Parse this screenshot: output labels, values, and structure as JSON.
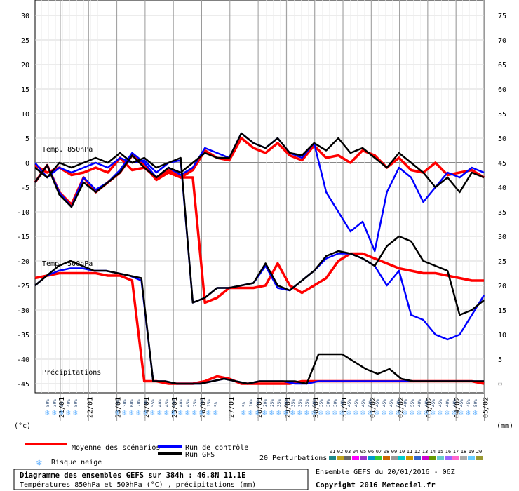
{
  "chart_data": {
    "type": "line",
    "title": "Diagramme des ensembles GEFS sur 384h : 46.8N 11.1E",
    "subtitle": "Températures 850hPa et 500hPa (°C) , précipitations (mm)",
    "left_unit": "(°c)",
    "right_unit": "(mm)",
    "left_ticks": [
      30,
      25,
      20,
      15,
      10,
      5,
      0,
      -5,
      -10,
      -15,
      -20,
      -25,
      -30,
      -35,
      -40,
      -45
    ],
    "right_ticks": [
      75,
      70,
      65,
      60,
      55,
      50,
      45,
      40,
      35,
      30,
      25,
      20,
      15,
      10,
      5,
      0
    ],
    "ylim": [
      -45,
      30
    ],
    "date_labels": [
      "21/01",
      "22/01",
      "23/01",
      "24/01",
      "25/01",
      "26/01",
      "27/01",
      "28/01",
      "29/01",
      "30/01",
      "31/01",
      "01/02",
      "02/02",
      "03/02",
      "04/02",
      "05/02"
    ],
    "section_labels": {
      "t850": "Temp. 850hPa",
      "t500": "Temp. 500hPa",
      "precip": "Précipitations"
    },
    "snow_risk": [
      "50%",
      "30%",
      "5%",
      "40%",
      "50%",
      "",
      "",
      "",
      "",
      "",
      "15%",
      "30%",
      "60%",
      "70%",
      "70%",
      "55%",
      "40%",
      "45%",
      "45%",
      "40%",
      "45%",
      "25%",
      "35%",
      "15%",
      "5%",
      "",
      "",
      "",
      "5%",
      "10%",
      "10%",
      "20%",
      "25%",
      "35%",
      "30%",
      "35%",
      "35%",
      "35%",
      "20%",
      "35%",
      "30%",
      "30%",
      "40%",
      "45%",
      "45%",
      "45%",
      "50%",
      "45%",
      "45%",
      "45%",
      "50%",
      "40%",
      "55%",
      "40%",
      "40%",
      "45%",
      "45%",
      "40%",
      "40%",
      "45%",
      "45%",
      "50%",
      "40%",
      "45%",
      "55%"
    ],
    "series": [
      {
        "name": "Moyenne des scénarios",
        "color": "#ff0000",
        "values": [
          -4,
          -0.5,
          -6,
          -8.5,
          -3,
          -6,
          -4,
          -2,
          1.5,
          -0.5,
          -3.5,
          -2,
          -3,
          -1.5,
          2.5,
          1,
          0.5,
          5,
          3,
          2,
          4,
          1.5,
          0.5,
          3.5,
          1,
          1.5,
          0,
          2.5,
          1.5,
          -1,
          1,
          -1.5,
          -2,
          0,
          -2.5,
          -2,
          -1.5,
          -3,
          -0.5,
          -2,
          -1,
          -2.5,
          -2,
          -1,
          -2,
          1,
          -1.5,
          -1,
          -3,
          -1.5,
          -3,
          -3,
          -28.5,
          -27.5,
          -25.5,
          -25.5,
          -25.5,
          -25,
          -20.5,
          -25,
          -26.5,
          -25,
          -23.5,
          -20,
          -18.5,
          -18.5,
          -19.5,
          -20.5,
          -21.5,
          -22,
          -22.5,
          -22.5,
          -23,
          -23.5,
          -24,
          -24,
          -23.5,
          -23,
          -22.5,
          -22.5,
          -22.5,
          -22.5,
          -23,
          -23,
          -24,
          -44.5,
          -44.5,
          -45,
          -45,
          -45,
          -44.5,
          -43.5,
          -44,
          -45,
          -45,
          -45,
          -45,
          -45,
          -44.5,
          -44.5,
          -44.5,
          -44.5,
          -44.5,
          -44.5,
          -44.5,
          -44.5,
          -44.5,
          -44.5,
          -44.5,
          -44.5,
          -44.5,
          -44.5,
          -44.5,
          -45
        ]
      },
      {
        "name": "Run de contrôle",
        "color": "#0000ff",
        "values": [
          -4,
          -0.5,
          -6,
          -9,
          -3,
          -5.5,
          -4,
          -1.5,
          2,
          0,
          -3,
          -1,
          -2.5,
          -1,
          3,
          2,
          1,
          6,
          4,
          3,
          5,
          2,
          1,
          4,
          -6,
          -10,
          -14,
          -12,
          -18,
          -6,
          -1,
          -3,
          -8,
          -5,
          -2,
          -3,
          -1,
          -2,
          0,
          -3,
          -1,
          -2,
          -1,
          0,
          -1,
          1,
          0,
          0.5,
          -2,
          0,
          0.5,
          -28.5,
          -27.5,
          -25.5,
          -25.5,
          -25,
          -24.5,
          -21,
          -25.5,
          -26,
          -24,
          -22,
          -19.5,
          -18.5,
          -18.5,
          -19.5,
          -21,
          -25,
          -22,
          -31,
          -32,
          -35,
          -36,
          -35,
          -31,
          -27,
          -25,
          -23,
          -22,
          -21.5,
          -21.5,
          -22,
          -22,
          -22.5,
          -23,
          -24,
          -44.5,
          -44.5,
          -45,
          -45,
          -45,
          -44.5,
          -44,
          -44.5,
          -45,
          -44.5,
          -44.5,
          -44.5,
          -45,
          -45,
          -44.5,
          -44.5,
          -44.5,
          -44.5,
          -44.5,
          -44.5,
          -44.5,
          -44.5,
          -44.5,
          -44.5,
          -44.5,
          -44.5,
          -44.5,
          -44.5,
          -44.5
        ]
      },
      {
        "name": "Run GFS",
        "color": "#000000",
        "values": [
          -4,
          -0.5,
          -6.5,
          -9,
          -4,
          -6,
          -4,
          -2,
          1.5,
          -1,
          -3,
          -1,
          -2,
          0,
          2,
          1,
          1,
          6,
          4,
          3,
          5,
          2,
          1.5,
          4,
          2.5,
          5,
          2,
          3,
          1,
          -1,
          2,
          0,
          -2,
          -5,
          -3,
          -6,
          -2,
          -3,
          -1,
          -3,
          0,
          -1,
          0,
          1,
          0,
          2,
          0,
          1,
          -1,
          0,
          1,
          -28.5,
          -27.5,
          -25.5,
          -25.5,
          -25,
          -24.5,
          -20.5,
          -25,
          -26,
          -24,
          -22,
          -19,
          -18,
          -18.5,
          -19.5,
          -21,
          -17,
          -15,
          -16,
          -20,
          -21,
          -22,
          -31,
          -30,
          -28,
          -25,
          -23,
          -21,
          -20,
          -21,
          -22,
          -22,
          -22.5,
          -23,
          -23.5,
          -44.5,
          -44.5,
          -45,
          -45,
          -45,
          -44.5,
          -44,
          -44.5,
          -45,
          -44.5,
          -44.5,
          -44.5,
          -44.5,
          -45,
          -39,
          -39,
          -39,
          -40.5,
          -42,
          -43,
          -42,
          -44,
          -44.5,
          -44.5,
          -44.5,
          -44.5,
          -44.5,
          -44.5,
          -44.5
        ]
      }
    ],
    "legend": {
      "mean": "Moyenne des scénarios",
      "control": "Run de contrôle",
      "gfs": "Run GFS",
      "snow": "Risque neige",
      "perturbations": "20 Perturbations",
      "perturbation_ids": [
        "01",
        "02",
        "03",
        "04",
        "05",
        "06",
        "07",
        "08",
        "09",
        "10",
        "11",
        "12",
        "13",
        "14",
        "15",
        "16",
        "17",
        "18",
        "19",
        "20"
      ],
      "perturbation_colors": [
        "#1f8a8a",
        "#bda21c",
        "#666666",
        "#ff00ff",
        "#9933cc",
        "#0099cc",
        "#33cc33",
        "#cc6600",
        "#999999",
        "#00cccc",
        "#cc9900",
        "#3366cc",
        "#cc00cc",
        "#669900",
        "#66cccc",
        "#9966ff",
        "#ff66cc",
        "#aaaaaa",
        "#66ccff",
        "#999933"
      ]
    },
    "footer": {
      "ensemble": "Ensemble GEFS du 20/01/2016 - 06Z",
      "copyright": "Copyright 2016 Meteociel.fr"
    }
  }
}
